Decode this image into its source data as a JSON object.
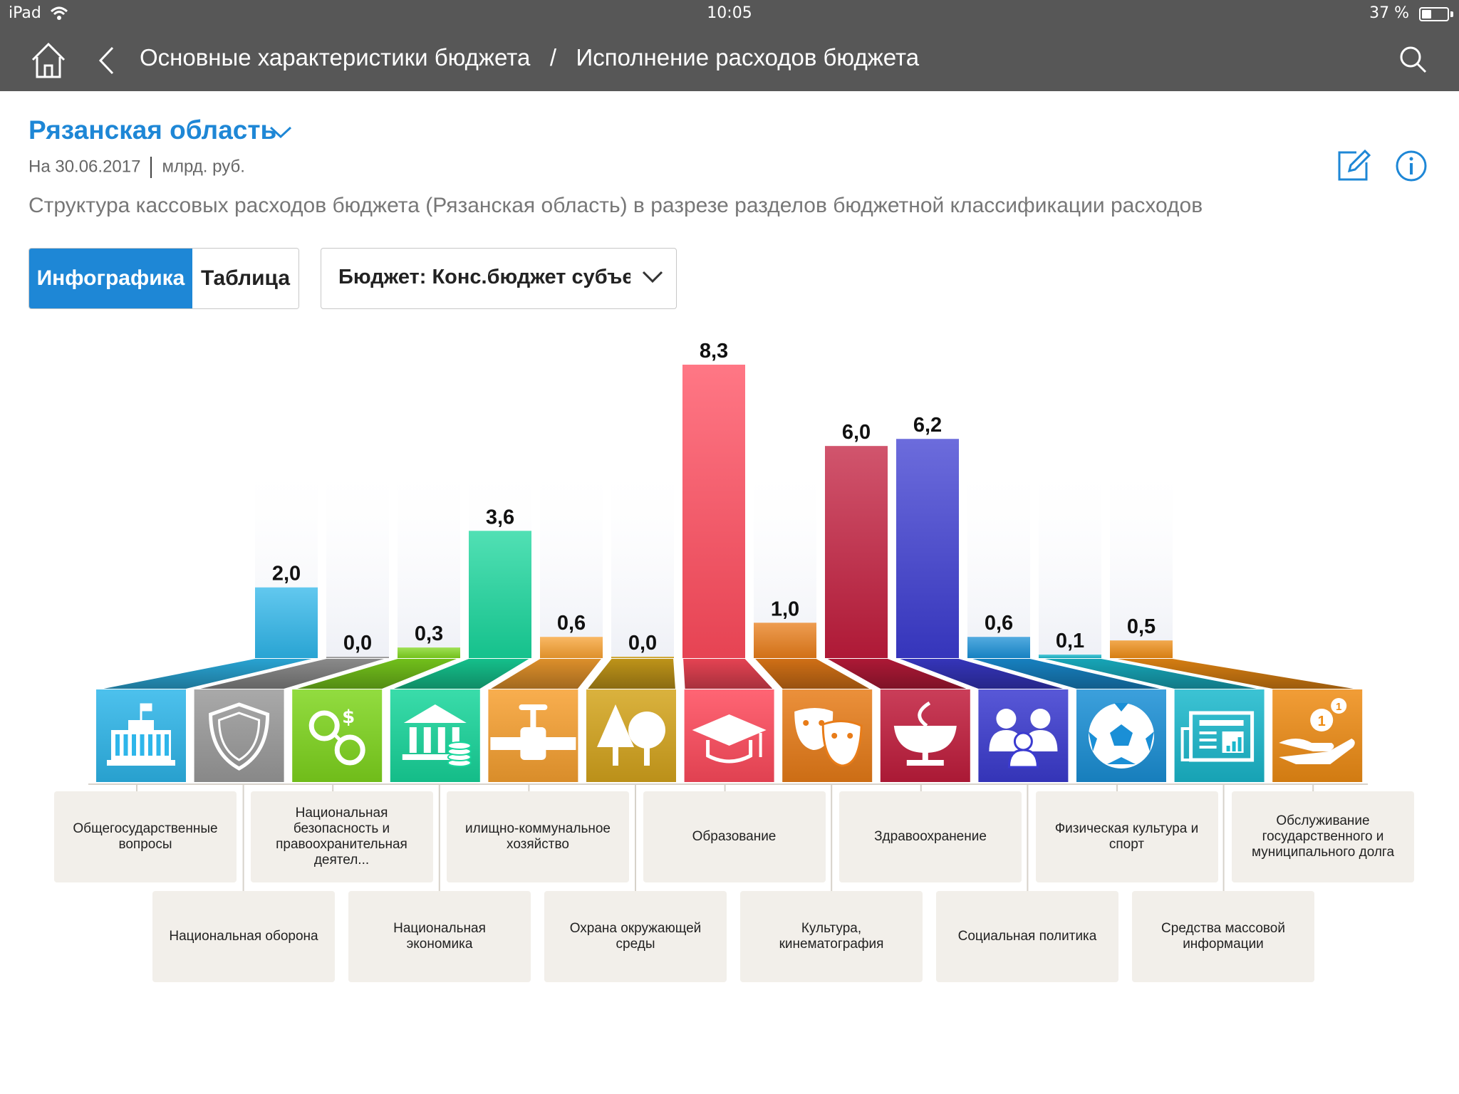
{
  "status": {
    "device": "iPad",
    "time": "10:05",
    "battery": "37 %",
    "battery_level": 0.37
  },
  "nav": {
    "crumb1": "Основные характеристики бюджета",
    "sep": "/",
    "crumb2": "Исполнение расходов бюджета"
  },
  "header": {
    "region": "Рязанская область",
    "date": "На 30.06.2017",
    "units": "млрд. руб.",
    "description": "Структура кассовых расходов бюджета (Рязанская область) в разрезе разделов бюджетной классификации расходов"
  },
  "controls": {
    "tab_active": "Инфографика",
    "tab_inactive": "Таблица",
    "budget_select": "Бюджет: Конс.бюджет субъекта"
  },
  "chart_data": {
    "type": "bar",
    "values": [
      2.0,
      0.0,
      0.3,
      3.6,
      0.6,
      0.0,
      8.3,
      1.0,
      6.0,
      6.2,
      0.6,
      0.1,
      0.5
    ],
    "value_labels": [
      "2,0",
      "0,0",
      "0,3",
      "3,6",
      "0,6",
      "0,0",
      "8,3",
      "1,0",
      "6,0",
      "6,2",
      "0,6",
      "0,1",
      "0,5"
    ],
    "colors": [
      "#2eb6ea",
      "#9a9a9a",
      "#7fd61e",
      "#17d69b",
      "#f7a030",
      "#d4a41c",
      "#ff4a5c",
      "#e87c18",
      "#c11c3c",
      "#3b3bd0",
      "#1a8fd6",
      "#1ab8cc",
      "#ee8c14"
    ],
    "icons": [
      "government-building-icon",
      "shield-icon",
      "handcuffs-icon",
      "bank-coins-icon",
      "pipe-valve-icon",
      "trees-icon",
      "graduation-cap-icon",
      "theater-masks-icon",
      "medicine-bowl-icon",
      "family-icon",
      "soccer-ball-icon",
      "newspaper-icon",
      "hand-coins-icon"
    ],
    "categories": [
      "Общегосударственные вопросы",
      "Национальная оборона",
      "Национальная безопасность и правоохранительная деятел...",
      "Национальная экономика",
      "илищно-коммунальное хозяйство",
      "Охрана окружающей среды",
      "Образование",
      "Культура, кинематография",
      "Здравоохранение",
      "Социальная политика",
      "Физическая культура и спорт",
      "Средства массовой информации",
      "Обслуживание государственного и муниципального долга"
    ]
  }
}
